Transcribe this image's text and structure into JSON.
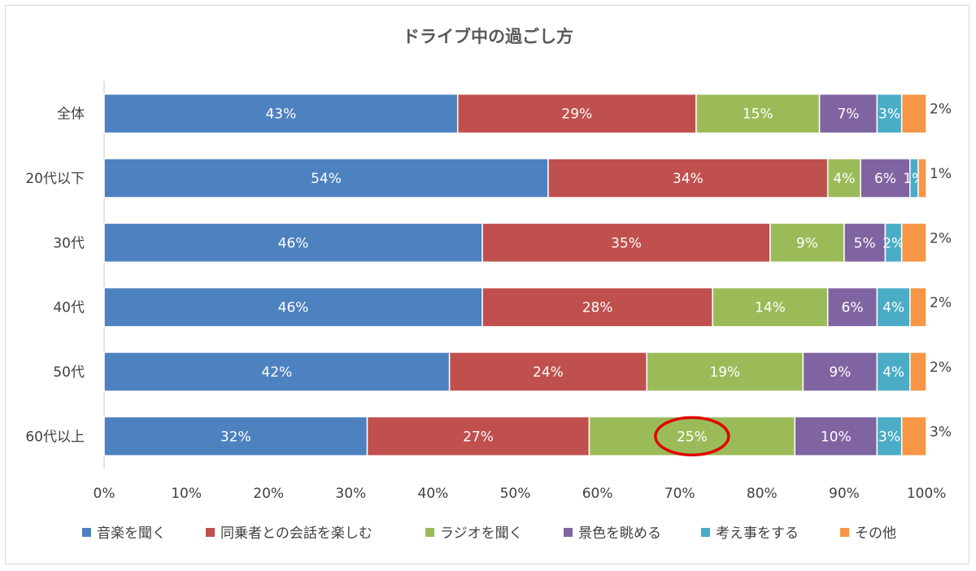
{
  "chart_data": {
    "type": "bar",
    "orientation": "horizontal",
    "stacked": true,
    "title": "ドライブ中の過ごし方",
    "categories": [
      "全体",
      "20代以下",
      "30代",
      "40代",
      "50代",
      "60代以上"
    ],
    "series": [
      {
        "name": "音楽を聞く",
        "color": "#4e81c0",
        "values": [
          43,
          54,
          46,
          46,
          42,
          32
        ]
      },
      {
        "name": "同乗者との会話を楽しむ",
        "color": "#c0504d",
        "values": [
          29,
          34,
          35,
          28,
          24,
          27
        ]
      },
      {
        "name": "ラジオを聞く",
        "color": "#9bbb59",
        "values": [
          15,
          4,
          9,
          14,
          19,
          25
        ]
      },
      {
        "name": "景色を眺める",
        "color": "#8064a2",
        "values": [
          7,
          6,
          5,
          6,
          9,
          10
        ]
      },
      {
        "name": "考え事をする",
        "color": "#4bacc6",
        "values": [
          3,
          1,
          2,
          4,
          4,
          3
        ]
      },
      {
        "name": "その他",
        "color": "#f79646",
        "values": [
          2,
          1,
          2,
          2,
          2,
          3
        ]
      }
    ],
    "xlim": [
      0,
      100
    ],
    "x_ticks": [
      "0%",
      "10%",
      "20%",
      "30%",
      "40%",
      "50%",
      "60%",
      "70%",
      "80%",
      "90%",
      "100%"
    ],
    "legend_position": "bottom",
    "grid": false,
    "annotation": {
      "category": "60代以上",
      "series": "ラジオを聞く",
      "shape": "ellipse",
      "color": "#e00000"
    }
  }
}
